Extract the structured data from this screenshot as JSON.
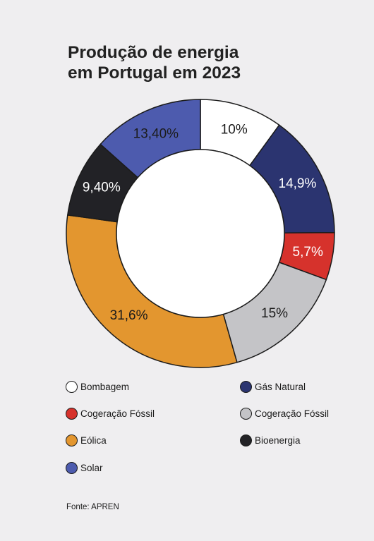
{
  "title_line1": "Produção de energia",
  "title_line2": "em Portugal em 2023",
  "source": "Fonte: APREN",
  "chart_data": {
    "type": "pie",
    "title": "Produção de energia em Portugal em 2023",
    "slices": [
      {
        "label": "Bombagem",
        "value": 10,
        "display": "10%",
        "color": "#ffffff",
        "text_color": "#1b1b1b"
      },
      {
        "label": "Gás Natural",
        "value": 14.9,
        "display": "14,9%",
        "color": "#2b3470",
        "text_color": "#ffffff"
      },
      {
        "label": "Cogeração Fóssil",
        "value": 5.7,
        "display": "5,7%",
        "color": "#d6322c",
        "text_color": "#ffffff"
      },
      {
        "label": "Cogeração Fóssil",
        "value": 15,
        "display": "15%",
        "color": "#c4c4c7",
        "text_color": "#1b1b1b"
      },
      {
        "label": "Eólica",
        "value": 31.6,
        "display": "31,6%",
        "color": "#e3962f",
        "text_color": "#1b1b1b"
      },
      {
        "label": "Bioenergia",
        "value": 9.4,
        "display": "9,40%",
        "color": "#222226",
        "text_color": "#ffffff"
      },
      {
        "label": "Solar",
        "value": 13.4,
        "display": "13,40%",
        "color": "#4d5bae",
        "text_color": "#1b1b1b"
      }
    ]
  },
  "legend": [
    {
      "label": "Bombagem",
      "color": "#ffffff"
    },
    {
      "label": "Gás Natural",
      "color": "#2b3470"
    },
    {
      "label": "Cogeração Fóssil",
      "color": "#d6322c"
    },
    {
      "label": "Cogeração Fóssil",
      "color": "#c4c4c7"
    },
    {
      "label": "Eólica",
      "color": "#e3962f"
    },
    {
      "label": "Bioenergia",
      "color": "#222226"
    },
    {
      "label": "Solar",
      "color": "#4d5bae"
    }
  ]
}
